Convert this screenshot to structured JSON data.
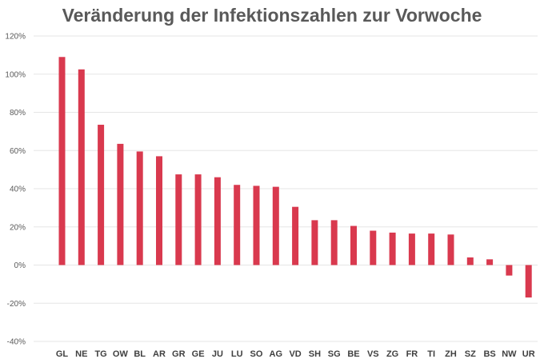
{
  "chart_data": {
    "type": "bar",
    "title": "Veränderung der Infektionszahlen zur Vorwoche",
    "xlabel": "",
    "ylabel": "",
    "categories": [
      "GL",
      "NE",
      "TG",
      "OW",
      "BL",
      "AR",
      "GR",
      "GE",
      "JU",
      "LU",
      "SO",
      "AG",
      "VD",
      "SH",
      "SG",
      "BE",
      "VS",
      "ZG",
      "FR",
      "TI",
      "ZH",
      "SZ",
      "BS",
      "NW",
      "UR"
    ],
    "values": [
      109,
      102.5,
      73.5,
      63.5,
      59.5,
      57,
      47.5,
      47.5,
      46,
      42,
      41.5,
      41,
      30.5,
      23.5,
      23.5,
      20.5,
      18,
      17,
      16.5,
      16.5,
      16,
      4,
      3,
      -5.5,
      -17
    ],
    "unit": "%",
    "ylim": [
      -40,
      120
    ],
    "yticks": [
      120,
      100,
      80,
      60,
      40,
      20,
      0,
      -20,
      -40
    ],
    "ytick_labels": [
      "120%",
      "100%",
      "80%",
      "60%",
      "40%",
      "20%",
      "0%",
      "-20%",
      "-40%"
    ],
    "grid": true,
    "bar_color": "#d9394e",
    "grid_color": "#e6e6e6",
    "legend": "none"
  }
}
